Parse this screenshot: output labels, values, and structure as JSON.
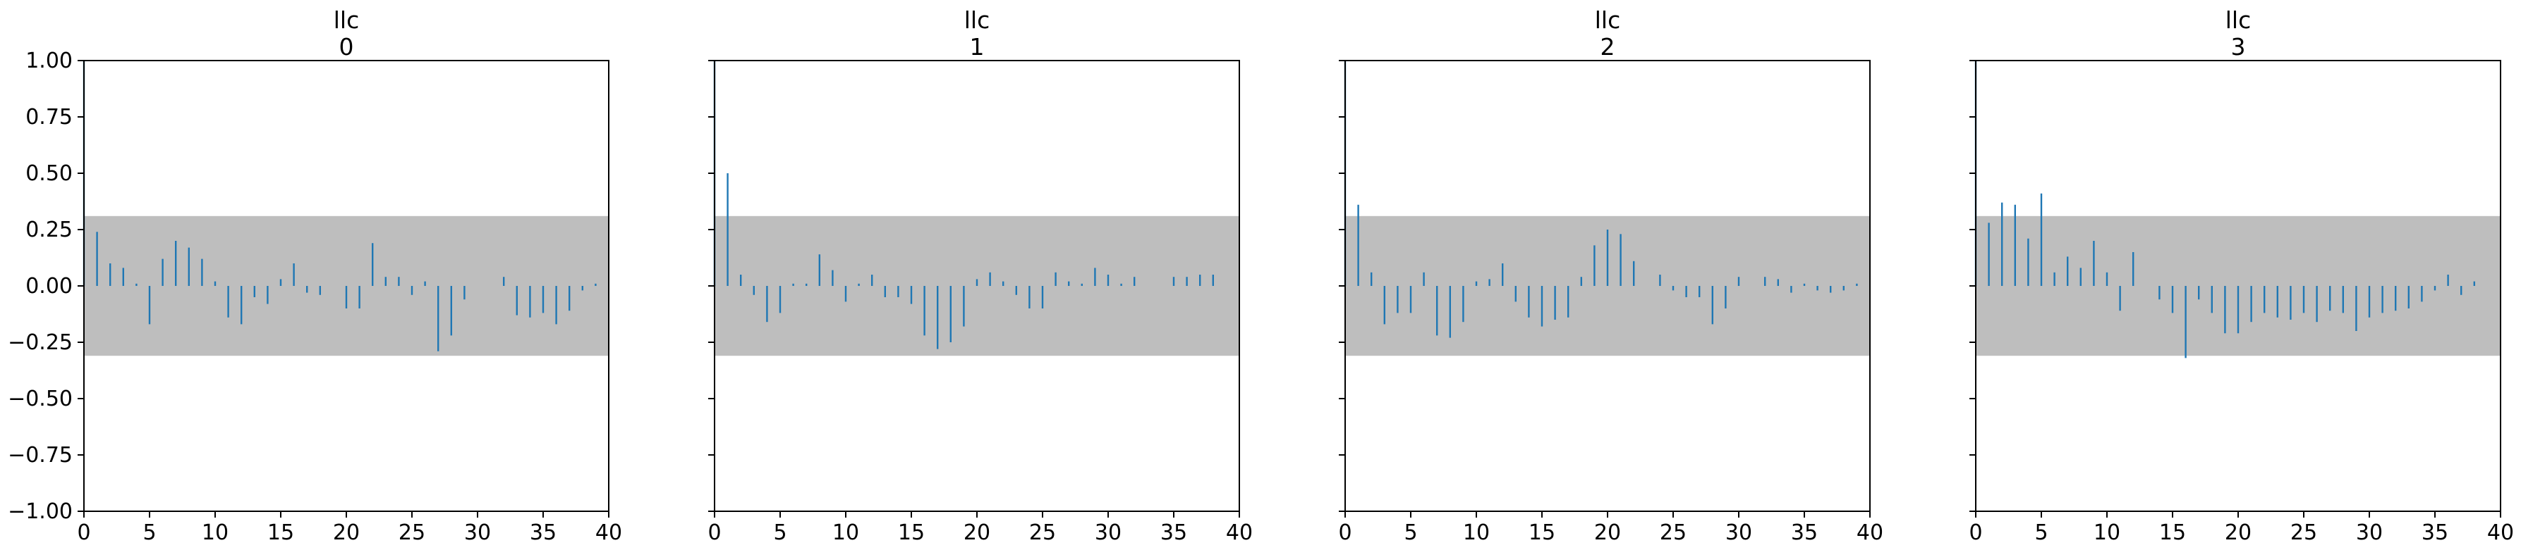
{
  "chart_data": [
    {
      "type": "bar",
      "title": [
        "llc",
        "0"
      ],
      "xlabel": "",
      "ylabel": "",
      "xlim": [
        0,
        40
      ],
      "ylim": [
        -1.0,
        1.0
      ],
      "xticks": [
        "0",
        "5",
        "10",
        "15",
        "20",
        "25",
        "30",
        "35",
        "40"
      ],
      "yticks": [
        "1.00",
        "0.75",
        "0.50",
        "0.25",
        "0.00",
        "−0.25",
        "−0.50",
        "−0.75",
        "−1.00"
      ],
      "confidence_band": [
        -0.31,
        0.31
      ],
      "series": [
        {
          "x": [
            0,
            1,
            2,
            3,
            4,
            5,
            6,
            7,
            8,
            9,
            10,
            11,
            12,
            13,
            14,
            15,
            16,
            17,
            18,
            19,
            20,
            21,
            22,
            23,
            24,
            25,
            26,
            27,
            28,
            29,
            30,
            31,
            32,
            33,
            34,
            35,
            36,
            37,
            38,
            39
          ],
          "values": [
            1.0,
            0.24,
            0.1,
            0.08,
            0.01,
            -0.17,
            0.12,
            0.2,
            0.17,
            0.12,
            0.02,
            -0.14,
            -0.17,
            -0.05,
            -0.08,
            0.03,
            0.1,
            -0.03,
            -0.04,
            0.0,
            -0.1,
            -0.1,
            0.19,
            0.04,
            0.04,
            -0.04,
            0.02,
            -0.29,
            -0.22,
            -0.06,
            0.0,
            0.0,
            0.04,
            -0.13,
            -0.14,
            -0.12,
            -0.17,
            -0.11,
            -0.02,
            0.01
          ]
        }
      ]
    },
    {
      "type": "bar",
      "title": [
        "llc",
        "1"
      ],
      "xlabel": "",
      "ylabel": "",
      "xlim": [
        0,
        40
      ],
      "ylim": [
        -1.0,
        1.0
      ],
      "xticks": [
        "0",
        "5",
        "10",
        "15",
        "20",
        "25",
        "30",
        "35",
        "40"
      ],
      "yticks": [],
      "confidence_band": [
        -0.31,
        0.31
      ],
      "series": [
        {
          "x": [
            0,
            1,
            2,
            3,
            4,
            5,
            6,
            7,
            8,
            9,
            10,
            11,
            12,
            13,
            14,
            15,
            16,
            17,
            18,
            19,
            20,
            21,
            22,
            23,
            24,
            25,
            26,
            27,
            28,
            29,
            30,
            31,
            32,
            33,
            34,
            35,
            36,
            37,
            38,
            39
          ],
          "values": [
            1.0,
            0.5,
            0.05,
            -0.04,
            -0.16,
            -0.12,
            0.01,
            0.01,
            0.14,
            0.07,
            -0.07,
            0.01,
            0.05,
            -0.05,
            -0.05,
            -0.08,
            -0.22,
            -0.28,
            -0.25,
            -0.18,
            0.03,
            0.06,
            0.02,
            -0.04,
            -0.1,
            -0.1,
            0.06,
            0.02,
            0.01,
            0.08,
            0.05,
            0.01,
            0.04,
            0.0,
            0.0,
            0.04,
            0.04,
            0.05,
            0.05,
            0.0
          ]
        }
      ]
    },
    {
      "type": "bar",
      "title": [
        "llc",
        "2"
      ],
      "xlabel": "",
      "ylabel": "",
      "xlim": [
        0,
        40
      ],
      "ylim": [
        -1.0,
        1.0
      ],
      "xticks": [
        "0",
        "5",
        "10",
        "15",
        "20",
        "25",
        "30",
        "35",
        "40"
      ],
      "yticks": [],
      "confidence_band": [
        -0.31,
        0.31
      ],
      "series": [
        {
          "x": [
            0,
            1,
            2,
            3,
            4,
            5,
            6,
            7,
            8,
            9,
            10,
            11,
            12,
            13,
            14,
            15,
            16,
            17,
            18,
            19,
            20,
            21,
            22,
            23,
            24,
            25,
            26,
            27,
            28,
            29,
            30,
            31,
            32,
            33,
            34,
            35,
            36,
            37,
            38,
            39
          ],
          "values": [
            1.0,
            0.36,
            0.06,
            -0.17,
            -0.12,
            -0.12,
            0.06,
            -0.22,
            -0.23,
            -0.16,
            0.02,
            0.03,
            0.1,
            -0.07,
            -0.14,
            -0.18,
            -0.15,
            -0.14,
            0.04,
            0.18,
            0.25,
            0.23,
            0.11,
            0.0,
            0.05,
            -0.02,
            -0.05,
            -0.05,
            -0.17,
            -0.1,
            0.04,
            0.0,
            0.04,
            0.03,
            -0.03,
            0.01,
            -0.02,
            -0.03,
            -0.02,
            0.01
          ]
        }
      ]
    },
    {
      "type": "bar",
      "title": [
        "llc",
        "3"
      ],
      "xlabel": "",
      "ylabel": "",
      "xlim": [
        0,
        40
      ],
      "ylim": [
        -1.0,
        1.0
      ],
      "xticks": [
        "0",
        "5",
        "10",
        "15",
        "20",
        "25",
        "30",
        "35",
        "40"
      ],
      "yticks": [],
      "confidence_band": [
        -0.31,
        0.31
      ],
      "series": [
        {
          "x": [
            0,
            1,
            2,
            3,
            4,
            5,
            6,
            7,
            8,
            9,
            10,
            11,
            12,
            13,
            14,
            15,
            16,
            17,
            18,
            19,
            20,
            21,
            22,
            23,
            24,
            25,
            26,
            27,
            28,
            29,
            30,
            31,
            32,
            33,
            34,
            35,
            36,
            37,
            38,
            39
          ],
          "values": [
            1.0,
            0.28,
            0.37,
            0.36,
            0.21,
            0.41,
            0.06,
            0.13,
            0.08,
            0.2,
            0.06,
            -0.11,
            0.15,
            0.0,
            -0.06,
            -0.12,
            -0.32,
            -0.06,
            -0.12,
            -0.21,
            -0.21,
            -0.16,
            -0.12,
            -0.14,
            -0.15,
            -0.12,
            -0.16,
            -0.11,
            -0.12,
            -0.2,
            -0.14,
            -0.12,
            -0.11,
            -0.1,
            -0.07,
            -0.02,
            0.05,
            -0.04,
            0.02,
            0.0
          ]
        }
      ]
    }
  ],
  "colors": {
    "stem": "#1f77b4",
    "band": "#bebebe",
    "axes": "#000000",
    "background": "#ffffff"
  }
}
